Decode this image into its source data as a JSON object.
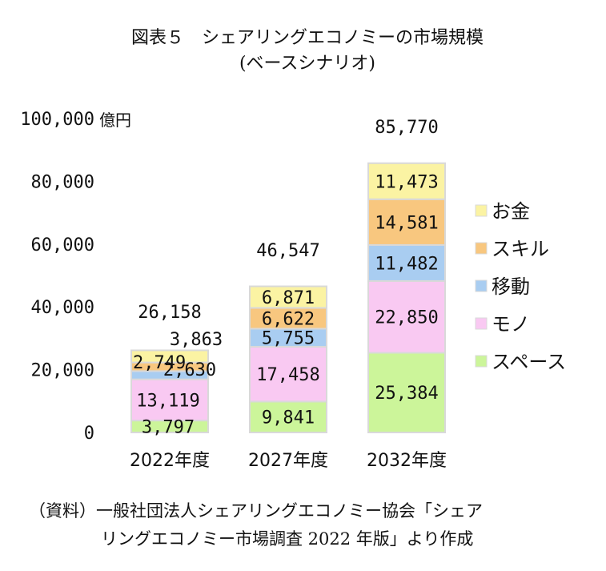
{
  "chart_data": {
    "type": "bar",
    "stacked": true,
    "title": "図表５　シェアリングエコノミーの市場規模",
    "subtitle": "(ベースシナリオ)",
    "ylabel": "",
    "xlabel": "",
    "unit": "億円",
    "ylim": [
      0,
      100000
    ],
    "yticks": [
      "0",
      "20,000",
      "40,000",
      "60,000",
      "80,000",
      "100,000"
    ],
    "ytick_values": [
      0,
      20000,
      40000,
      60000,
      80000,
      100000
    ],
    "categories": [
      "2022年度",
      "2027年度",
      "2032年度"
    ],
    "series": [
      {
        "name": "スペース",
        "color": "#ccf59a",
        "values": [
          3797,
          9841,
          25384
        ],
        "labels": [
          "3,797",
          "9,841",
          "25,384"
        ]
      },
      {
        "name": "モノ",
        "color": "#f9c9f2",
        "values": [
          13119,
          17458,
          22850
        ],
        "labels": [
          "13,119",
          "17,458",
          "22,850"
        ]
      },
      {
        "name": "移動",
        "color": "#a9cdf1",
        "values": [
          2630,
          5755,
          11482
        ],
        "labels": [
          "2,630",
          "5,755",
          "11,482"
        ]
      },
      {
        "name": "スキル",
        "color": "#f8c77f",
        "values": [
          2749,
          6622,
          14581
        ],
        "labels": [
          "2,749",
          "6,622",
          "14,581"
        ]
      },
      {
        "name": "お金",
        "color": "#fbf3a3",
        "values": [
          3863,
          6871,
          11473
        ],
        "labels": [
          "3,863",
          "6,871",
          "11,473"
        ]
      }
    ],
    "totals": [
      26158,
      46547,
      85770
    ],
    "total_labels": [
      "26,158",
      "46,547",
      "85,770"
    ],
    "legend": {
      "placement": "right",
      "order": [
        "お金",
        "スキル",
        "移動",
        "モノ",
        "スペース"
      ]
    },
    "grid": false,
    "source": [
      "（資料）一般社団法人シェアリングエコノミー協会「シェア",
      "リングエコノミー市場調査 2022 年版」より作成"
    ]
  }
}
